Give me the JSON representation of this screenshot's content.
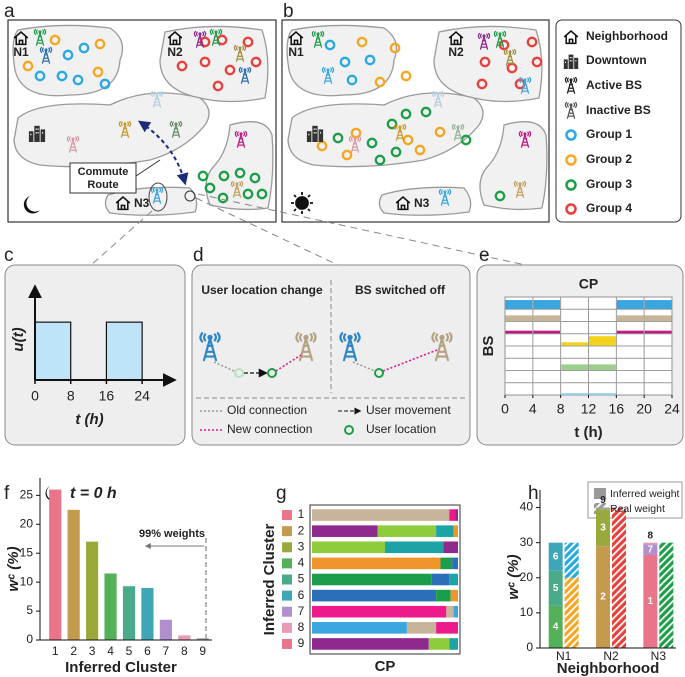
{
  "panel_labels": [
    "a",
    "b",
    "c",
    "d",
    "e",
    "f",
    "g",
    "h"
  ],
  "map": {
    "neighborhood_labels": [
      "N1",
      "N2",
      "N3"
    ],
    "commute_label": [
      "Commute",
      "Route"
    ]
  },
  "legend": [
    {
      "label": "Neighborhood"
    },
    {
      "label": "Downtown"
    },
    {
      "label": "Active BS"
    },
    {
      "label": "Inactive BS"
    },
    {
      "label": "Group 1",
      "color": "#29a9e0"
    },
    {
      "label": "Group 2",
      "color": "#f5a623"
    },
    {
      "label": "Group 3",
      "color": "#1e9e48"
    },
    {
      "label": "Group 4",
      "color": "#e8403c"
    }
  ],
  "panel_d": {
    "titles": [
      "User location change",
      "BS switched off"
    ],
    "legend": [
      "Old connection",
      "User movement",
      "New connection",
      "User location"
    ]
  },
  "chart_data": [
    {
      "type": "histogram",
      "bins": [
        0,
        8,
        16,
        24
      ],
      "values": [
        1,
        0,
        1
      ],
      "color": "#bfe4f8",
      "xlim": [
        0,
        28
      ],
      "ylim": [
        0,
        1.4
      ],
      "xticks": [
        0,
        8,
        16,
        24
      ],
      "xlabel": "t (h)",
      "ylabel": "u(t)"
    },
    {
      "type": "heatmap",
      "title": "CP",
      "xlim": [
        0,
        24
      ],
      "xticks": [
        0,
        4,
        8,
        12,
        16,
        20,
        24
      ],
      "xlabel": "t (h)",
      "ylabel": "BS",
      "rows": [
        {
          "color": "#3aa6e0",
          "values": [
            0.75,
            0.75,
            0,
            0,
            0.75,
            0.75
          ]
        },
        {
          "color": "#c8b49a",
          "values": [
            0.5,
            0.5,
            0,
            0,
            0.5,
            0.5
          ]
        },
        {
          "color": "#c2187f",
          "values": [
            0.25,
            0.25,
            0,
            0,
            0.25,
            0.25
          ]
        },
        {
          "color": "#f2d21b",
          "values": [
            0,
            0,
            0.3,
            0.8,
            0,
            0
          ]
        },
        {
          "color": "#cccccc",
          "values": [
            0,
            0,
            0,
            0,
            0,
            0
          ]
        },
        {
          "color": "#9ccf8c",
          "values": [
            0,
            0,
            0.5,
            0.5,
            0,
            0
          ]
        },
        {
          "color": "#cccccc",
          "values": [
            0,
            0,
            0,
            0,
            0,
            0
          ]
        },
        {
          "color": "#8fd0ee",
          "values": [
            0,
            0,
            0.15,
            0.15,
            0,
            0
          ]
        }
      ]
    },
    {
      "type": "bar",
      "title": "t = 0 h",
      "annotation": "99% weights",
      "categories": [
        "1",
        "2",
        "3",
        "4",
        "5",
        "6",
        "7",
        "8",
        "9"
      ],
      "values": [
        26,
        22.5,
        17,
        11.5,
        9.3,
        9,
        3.5,
        0.8,
        0.3
      ],
      "colors": [
        "#e8758a",
        "#c49a4e",
        "#9aa83c",
        "#55b05a",
        "#4aab8a",
        "#3fa6b8",
        "#b08fcf",
        "#e79bb7",
        "#a0a0a0"
      ],
      "ylim": [
        0,
        28
      ],
      "yticks": [
        0,
        5,
        10,
        15,
        20,
        25
      ],
      "xlabel": "Inferred Cluster",
      "ylabel": "wᶜ (%)"
    },
    {
      "type": "stacked-barh",
      "categories": [
        "1",
        "2",
        "3",
        "4",
        "5",
        "6",
        "7",
        "8",
        "9"
      ],
      "category_colors": [
        "#e8758a",
        "#c49a4e",
        "#9aa83c",
        "#55b05a",
        "#4aab8a",
        "#3fa6b8",
        "#b08fcf",
        "#e79bb7",
        "#e8758a"
      ],
      "xlim": [
        0,
        100
      ],
      "xlabel": "CP",
      "ylabel": "Inferred Cluster",
      "segments": [
        [
          {
            "color": "#c8b49a",
            "value": 94
          },
          {
            "color": "#ee1a8c",
            "value": 4
          },
          {
            "color": "#8e2a8e",
            "value": 2
          }
        ],
        [
          {
            "color": "#8e2a8e",
            "value": 45
          },
          {
            "color": "#8fcc3c",
            "value": 40
          },
          {
            "color": "#1ba3a6",
            "value": 12
          },
          {
            "color": "#f0952b",
            "value": 3
          }
        ],
        [
          {
            "color": "#8fcc3c",
            "value": 50
          },
          {
            "color": "#1ba3a6",
            "value": 40
          },
          {
            "color": "#8e2a8e",
            "value": 10
          }
        ],
        [
          {
            "color": "#f0952b",
            "value": 88
          },
          {
            "color": "#1b9e4b",
            "value": 8
          },
          {
            "color": "#2a6fb8",
            "value": 4
          }
        ],
        [
          {
            "color": "#1b9e4b",
            "value": 82
          },
          {
            "color": "#2a6fb8",
            "value": 12
          },
          {
            "color": "#1ba3a6",
            "value": 6
          }
        ],
        [
          {
            "color": "#2a6fb8",
            "value": 85
          },
          {
            "color": "#1b9e4b",
            "value": 10
          },
          {
            "color": "#f0952b",
            "value": 5
          }
        ],
        [
          {
            "color": "#ee1a8c",
            "value": 92
          },
          {
            "color": "#c8b49a",
            "value": 5
          },
          {
            "color": "#3aa6e0",
            "value": 3
          }
        ],
        [
          {
            "color": "#3aa6e0",
            "value": 65
          },
          {
            "color": "#c8b49a",
            "value": 20
          },
          {
            "color": "#ee1a8c",
            "value": 15
          }
        ],
        [
          {
            "color": "#8e2a8e",
            "value": 80
          },
          {
            "color": "#8fcc3c",
            "value": 14
          },
          {
            "color": "#1ba3a6",
            "value": 6
          }
        ]
      ]
    },
    {
      "type": "stacked-bar",
      "categories": [
        "N1",
        "N2",
        "N3"
      ],
      "legend": [
        "Inferred weight",
        "Real weight"
      ],
      "ylim": [
        0,
        45
      ],
      "yticks": [
        0,
        10,
        20,
        30,
        40
      ],
      "xlabel": "Neighborhood",
      "ylabel": "wᶜ (%)",
      "inferred": [
        [
          {
            "label": "4",
            "color": "#55b05a",
            "value": 12
          },
          {
            "label": "5",
            "color": "#4aab8a",
            "value": 10
          },
          {
            "label": "6",
            "color": "#3fa6b8",
            "value": 8
          }
        ],
        [
          {
            "label": "2",
            "color": "#c49a4e",
            "value": 29
          },
          {
            "label": "3",
            "color": "#9aa83c",
            "value": 10.5
          },
          {
            "label": "9",
            "color": "#a0a0a0",
            "value": 0.5
          }
        ],
        [
          {
            "label": "1",
            "color": "#e8758a",
            "value": 26.5
          },
          {
            "label": "7",
            "color": "#b08fcf",
            "value": 3
          },
          {
            "label": "8",
            "color": "#e79bb7",
            "value": 0.5
          }
        ]
      ],
      "real": [
        [
          {
            "color": "#f5a623",
            "value": 20
          },
          {
            "color": "#29a9e0",
            "value": 10
          }
        ],
        [
          {
            "color": "#e8403c",
            "value": 40
          }
        ],
        [
          {
            "color": "#1e9e48",
            "value": 30
          }
        ]
      ]
    }
  ]
}
